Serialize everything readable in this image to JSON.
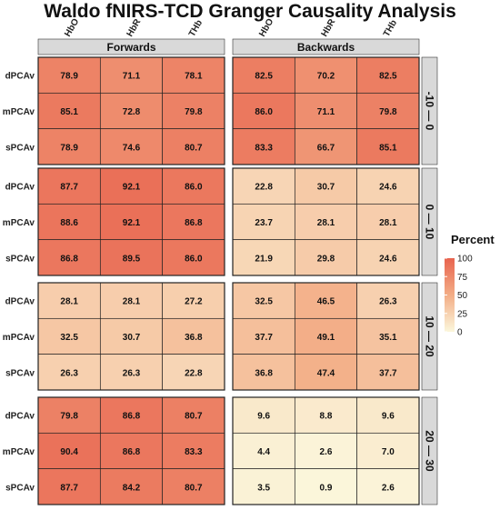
{
  "chart_data": {
    "type": "heatmap",
    "title": "Waldo fNIRS-TCD Granger Causality Analysis",
    "column_facets": [
      "Forwards",
      "Backwards"
    ],
    "row_facets": [
      "-10 — 0",
      "0 — 10",
      "10 — 20",
      "20 — 30"
    ],
    "x_categories": [
      "HbO",
      "HbR",
      "THb"
    ],
    "y_categories": [
      "dPCAv",
      "mPCAv",
      "sPCAv"
    ],
    "legend": {
      "title": "Percent",
      "ticks": [
        100,
        75,
        50,
        25,
        0
      ],
      "range": [
        0,
        100
      ],
      "low_color": "#fbf7dc",
      "mid_color": "#f3ad86",
      "high_color": "#e8644f"
    },
    "panels": [
      {
        "row": "-10 — 0",
        "col": "Forwards",
        "values": [
          [
            78.9,
            71.1,
            78.1
          ],
          [
            85.1,
            72.8,
            79.8
          ],
          [
            78.9,
            74.6,
            80.7
          ]
        ]
      },
      {
        "row": "-10 — 0",
        "col": "Backwards",
        "values": [
          [
            82.5,
            70.2,
            82.5
          ],
          [
            86.0,
            71.1,
            79.8
          ],
          [
            83.3,
            66.7,
            85.1
          ]
        ]
      },
      {
        "row": "0 — 10",
        "col": "Forwards",
        "values": [
          [
            87.7,
            92.1,
            86.0
          ],
          [
            88.6,
            92.1,
            86.8
          ],
          [
            86.8,
            89.5,
            86.0
          ]
        ]
      },
      {
        "row": "0 — 10",
        "col": "Backwards",
        "values": [
          [
            22.8,
            30.7,
            24.6
          ],
          [
            23.7,
            28.1,
            28.1
          ],
          [
            21.9,
            29.8,
            24.6
          ]
        ]
      },
      {
        "row": "10 — 20",
        "col": "Forwards",
        "values": [
          [
            28.1,
            28.1,
            27.2
          ],
          [
            32.5,
            30.7,
            36.8
          ],
          [
            26.3,
            26.3,
            22.8
          ]
        ]
      },
      {
        "row": "10 — 20",
        "col": "Backwards",
        "values": [
          [
            32.5,
            46.5,
            26.3
          ],
          [
            37.7,
            49.1,
            35.1
          ],
          [
            36.8,
            47.4,
            37.7
          ]
        ]
      },
      {
        "row": "20 — 30",
        "col": "Forwards",
        "values": [
          [
            79.8,
            86.8,
            80.7
          ],
          [
            90.4,
            86.8,
            83.3
          ],
          [
            87.7,
            84.2,
            80.7
          ]
        ]
      },
      {
        "row": "20 — 30",
        "col": "Backwards",
        "values": [
          [
            9.6,
            8.8,
            9.6
          ],
          [
            4.4,
            2.6,
            7.0
          ],
          [
            3.5,
            0.9,
            2.6
          ]
        ]
      }
    ]
  }
}
